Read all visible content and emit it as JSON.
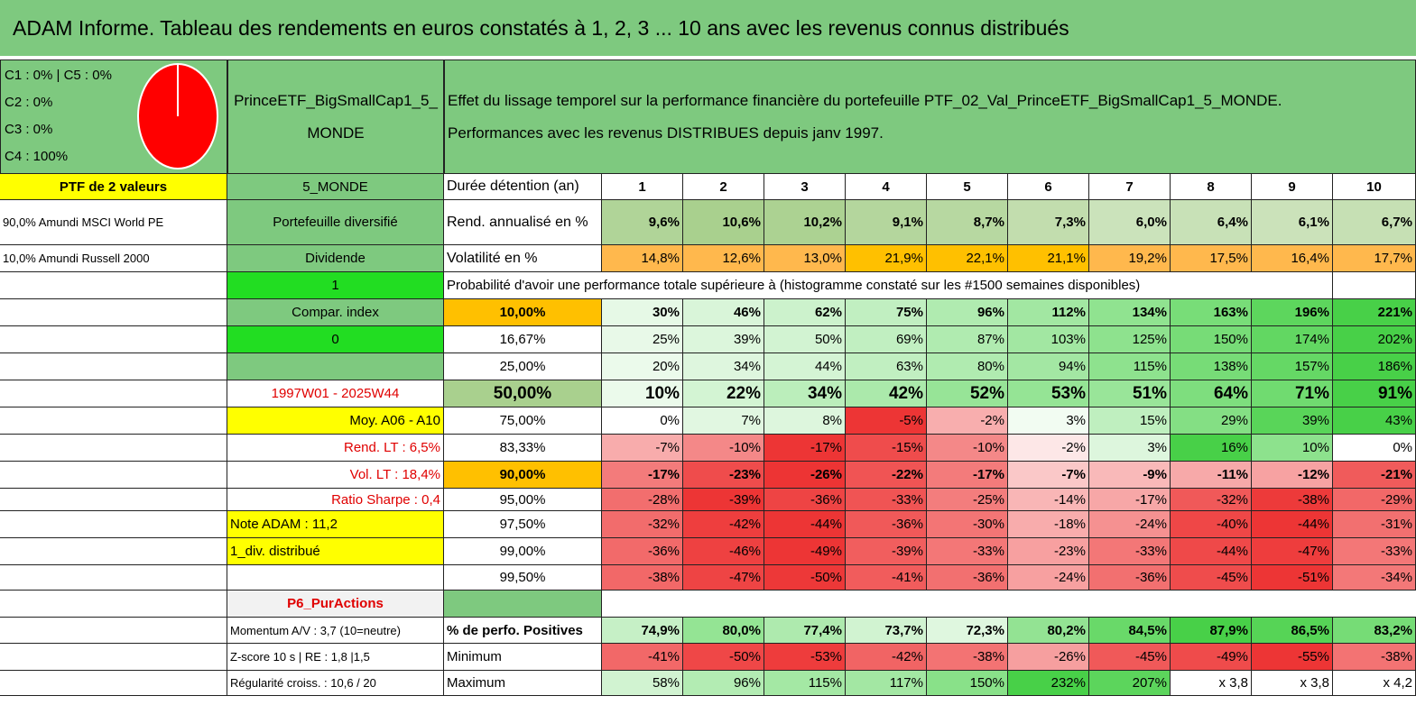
{
  "header": {
    "title": "ADAM Informe. Tableau des rendements en euros constatés à 1, 2, 3 ... 10 ans avec les revenus connus distribués",
    "legend": [
      "C1 : 0% | C5 : 0%",
      "C2 : 0%",
      "C3 : 0%",
      "C4 : 100%"
    ],
    "portfolio": [
      "PrinceETF_BigSmallCap1_5_",
      "MONDE"
    ],
    "description": [
      "Effet du lissage temporel sur la performance financière du portefeuille PTF_02_Val_PrinceETF_BigSmallCap1_5_MONDE.",
      "Performances avec les revenus DISTRIBUES depuis janv 1997."
    ]
  },
  "table": {
    "rows": [
      {
        "a": "PTF de 2 valeurs",
        "b": "5_MONDE",
        "c": "Durée détention (an)",
        "values": [
          "1",
          "2",
          "3",
          "4",
          "5",
          "6",
          "7",
          "8",
          "9",
          "10"
        ]
      },
      {
        "a": "90,0% Amundi MSCI World PE",
        "b": "Portefeuille diversifié",
        "c": "Rend. annualisé en %",
        "values": [
          "9,6%",
          "10,6%",
          "10,2%",
          "9,1%",
          "8,7%",
          "7,3%",
          "6,0%",
          "6,4%",
          "6,1%",
          "6,7%"
        ]
      },
      {
        "a": "10,0% Amundi Russell 2000",
        "b": "Dividende",
        "c": "Volatilité en %",
        "values": [
          "14,8%",
          "12,6%",
          "13,0%",
          "21,9%",
          "22,1%",
          "21,1%",
          "19,2%",
          "17,5%",
          "16,4%",
          "17,7%"
        ]
      },
      {
        "b": "1",
        "span": "Probabilité d'avoir une performance totale supérieure à (histogramme constaté sur les #1500 semaines disponibles)"
      },
      {
        "b": "Compar. index",
        "c": "10,00%",
        "values": [
          "30%",
          "46%",
          "62%",
          "75%",
          "96%",
          "112%",
          "134%",
          "163%",
          "196%",
          "221%"
        ]
      },
      {
        "b": "0",
        "c": "16,67%",
        "values": [
          "25%",
          "39%",
          "50%",
          "69%",
          "87%",
          "103%",
          "125%",
          "150%",
          "174%",
          "202%"
        ]
      },
      {
        "c": "25,00%",
        "values": [
          "20%",
          "34%",
          "44%",
          "63%",
          "80%",
          "94%",
          "115%",
          "138%",
          "157%",
          "186%"
        ]
      },
      {
        "b": "1997W01 - 2025W44",
        "c": "50,00%",
        "values": [
          "10%",
          "22%",
          "34%",
          "42%",
          "52%",
          "53%",
          "51%",
          "64%",
          "71%",
          "91%"
        ]
      },
      {
        "b": "Moy. A06 - A10",
        "c": "75,00%",
        "values": [
          "0%",
          "7%",
          "8%",
          "-5%",
          "-2%",
          "3%",
          "15%",
          "29%",
          "39%",
          "43%"
        ]
      },
      {
        "b": "Rend. LT : 6,5%",
        "c": "83,33%",
        "values": [
          "-7%",
          "-10%",
          "-17%",
          "-15%",
          "-10%",
          "-2%",
          "3%",
          "16%",
          "10%",
          "0%"
        ]
      },
      {
        "b": "Vol. LT : 18,4%",
        "c": "90,00%",
        "values": [
          "-17%",
          "-23%",
          "-26%",
          "-22%",
          "-17%",
          "-7%",
          "-9%",
          "-11%",
          "-12%",
          "-21%"
        ]
      },
      {
        "b": "Ratio Sharpe : 0,4",
        "c": "95,00%",
        "values": [
          "-28%",
          "-39%",
          "-36%",
          "-33%",
          "-25%",
          "-14%",
          "-17%",
          "-32%",
          "-38%",
          "-29%"
        ]
      },
      {
        "b": "Note ADAM : 11,2",
        "c": "97,50%",
        "values": [
          "-32%",
          "-42%",
          "-44%",
          "-36%",
          "-30%",
          "-18%",
          "-24%",
          "-40%",
          "-44%",
          "-31%"
        ]
      },
      {
        "b": "1_div. distribué",
        "c": "99,00%",
        "values": [
          "-36%",
          "-46%",
          "-49%",
          "-39%",
          "-33%",
          "-23%",
          "-33%",
          "-44%",
          "-47%",
          "-33%"
        ]
      },
      {
        "c": "99,50%",
        "values": [
          "-38%",
          "-47%",
          "-50%",
          "-41%",
          "-36%",
          "-24%",
          "-36%",
          "-45%",
          "-51%",
          "-34%"
        ]
      },
      {
        "b": "P6_PurActions"
      },
      {
        "b": "Momentum A/V : 3,7 (10=neutre)",
        "c": "% de perfo. Positives",
        "values": [
          "74,9%",
          "80,0%",
          "77,4%",
          "73,7%",
          "72,3%",
          "80,2%",
          "84,5%",
          "87,9%",
          "86,5%",
          "83,2%"
        ]
      },
      {
        "b": "Z-score 10 s | RE : 1,8 |1,5",
        "c": "Minimum",
        "values": [
          "-41%",
          "-50%",
          "-53%",
          "-42%",
          "-38%",
          "-26%",
          "-45%",
          "-49%",
          "-55%",
          "-38%"
        ]
      },
      {
        "b": "Régularité croiss. : 10,6 / 20",
        "c": "Maximum",
        "values": [
          "58%",
          "96%",
          "115%",
          "117%",
          "150%",
          "232%",
          "207%",
          "x 3,8",
          "x 3,8",
          "x 4,2"
        ]
      }
    ]
  }
}
